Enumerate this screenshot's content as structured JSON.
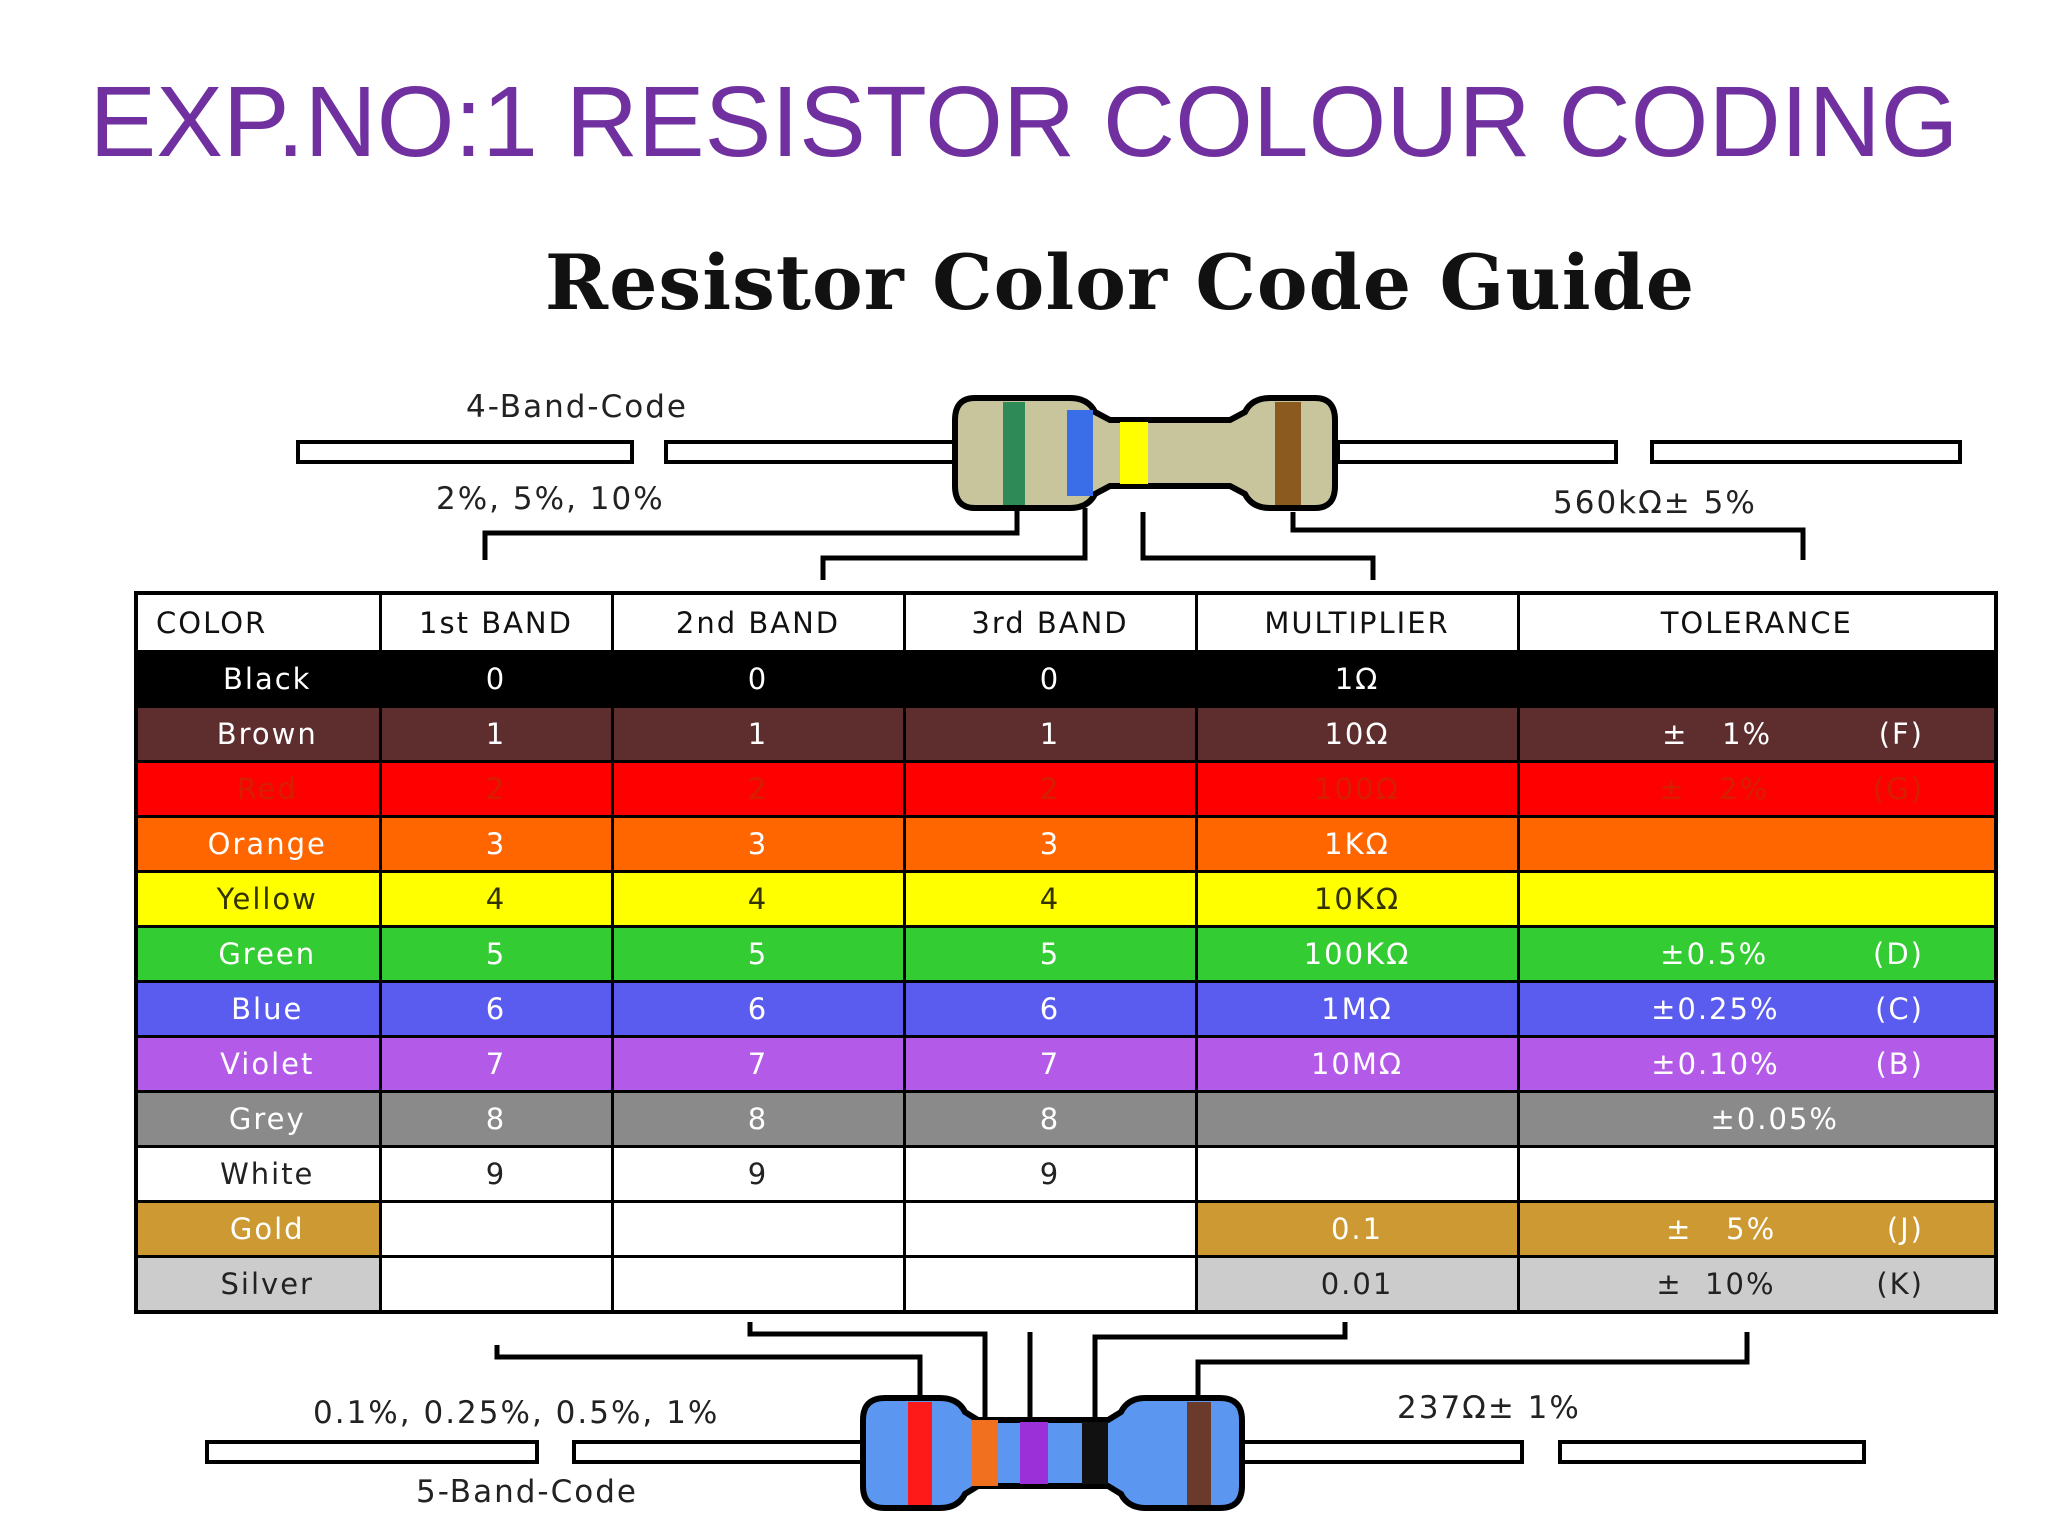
{
  "title": "EXP.NO:1 RESISTOR COLOUR CODING",
  "guide_title": "Resistor Color Code Guide",
  "four_band": {
    "label": "4-Band-Code",
    "tolerance_options": "2%, 5%, 10%",
    "example": "560kΩ± 5%",
    "band_colors": [
      "#2e8b57",
      "#3a6ee8",
      "#ffff00",
      "#8b5a1e"
    ],
    "body_color": "#c8c49c"
  },
  "five_band": {
    "label": "5-Band-Code",
    "tolerance_options": "0.1%, 0.25%, 0.5%, 1%",
    "example": "237Ω± 1%",
    "band_colors": [
      "#ff1a1a",
      "#f07020",
      "#9b30d9",
      "#111111",
      "#6b3a2a"
    ],
    "body_color": "#5b96f0"
  },
  "table": {
    "headers": [
      "COLOR",
      "1st BAND",
      "2nd BAND",
      "3rd BAND",
      "MULTIPLIER",
      "TOLERANCE"
    ],
    "rows": [
      {
        "name": "Black",
        "bg": "#000000",
        "fg": "#ffffff",
        "b1": "0",
        "b2": "0",
        "b3": "0",
        "mult": "1Ω",
        "tol": "",
        "tol_code": ""
      },
      {
        "name": "Brown",
        "bg": "#5e2e2e",
        "fg": "#ffffff",
        "b1": "1",
        "b2": "1",
        "b3": "1",
        "mult": "10Ω",
        "tol": "±   1%",
        "tol_code": "(F)"
      },
      {
        "name": "Red",
        "bg": "#ff0000",
        "fg": "#d42000",
        "b1": "2",
        "b2": "2",
        "b3": "2",
        "mult": "100Ω",
        "tol": "±   2%",
        "tol_code": "(G)"
      },
      {
        "name": "Orange",
        "bg": "#ff6600",
        "fg": "#ffffff",
        "b1": "3",
        "b2": "3",
        "b3": "3",
        "mult": "1KΩ",
        "tol": "",
        "tol_code": ""
      },
      {
        "name": "Yellow",
        "bg": "#ffff00",
        "fg": "#333300",
        "b1": "4",
        "b2": "4",
        "b3": "4",
        "mult": "10KΩ",
        "tol": "",
        "tol_code": ""
      },
      {
        "name": "Green",
        "bg": "#33cc33",
        "fg": "#ffffff",
        "b1": "5",
        "b2": "5",
        "b3": "5",
        "mult": "100KΩ",
        "tol": "±0.5%",
        "tol_code": "(D)"
      },
      {
        "name": "Blue",
        "bg": "#5a5cf0",
        "fg": "#ffffff",
        "b1": "6",
        "b2": "6",
        "b3": "6",
        "mult": "1MΩ",
        "tol": "±0.25%",
        "tol_code": "(C)"
      },
      {
        "name": "Violet",
        "bg": "#b45ae8",
        "fg": "#ffffff",
        "b1": "7",
        "b2": "7",
        "b3": "7",
        "mult": "10MΩ",
        "tol": "±0.10%",
        "tol_code": "(B)"
      },
      {
        "name": "Grey",
        "bg": "#8a8a8a",
        "fg": "#ffffff",
        "b1": "8",
        "b2": "8",
        "b3": "8",
        "mult": "",
        "tol": "±0.05%",
        "tol_code": ""
      },
      {
        "name": "White",
        "bg": "#ffffff",
        "fg": "#222222",
        "b1": "9",
        "b2": "9",
        "b3": "9",
        "mult": "",
        "tol": "",
        "tol_code": ""
      },
      {
        "name": "Gold",
        "bg": "#cc9933",
        "fg": "#ffffff",
        "b1": "",
        "b2": "",
        "b3": "",
        "mult": "0.1",
        "tol": "±   5%",
        "tol_code": "(J)"
      },
      {
        "name": "Silver",
        "bg": "#cccccc",
        "fg": "#222222",
        "b1": "",
        "b2": "",
        "b3": "",
        "mult": "0.01",
        "tol": "±  10%",
        "tol_code": "(K)"
      }
    ]
  }
}
